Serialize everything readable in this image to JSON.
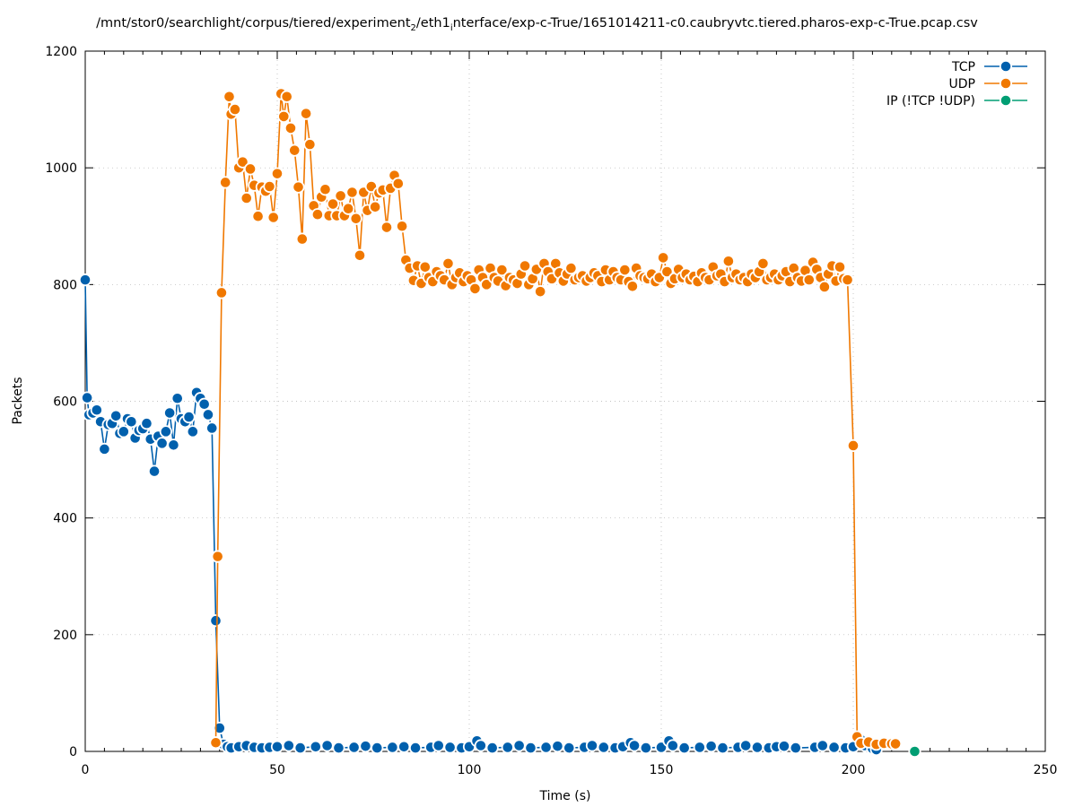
{
  "chart_data": {
    "type": "line",
    "title_parts": {
      "pre": "/mnt/stor0/searchlight/corpus/tiered/experiment",
      "sub1": "2",
      "mid": "/eth1",
      "sub2": "i",
      "post": "nterface/exp-c-True/1651014211-c0.caubryvtc.tiered.pharos-exp-c-True.pcap.csv"
    },
    "xlabel": "Time (s)",
    "ylabel": "Packets",
    "xlim": [
      0,
      250
    ],
    "ylim": [
      0,
      1200
    ],
    "x_ticks": [
      0,
      50,
      100,
      150,
      200,
      250
    ],
    "y_ticks": [
      0,
      200,
      400,
      600,
      800,
      1000,
      1200
    ],
    "grid": true,
    "legend_position": "top-right",
    "series": [
      {
        "name": "TCP",
        "color": "#0060ad",
        "points": [
          [
            0,
            808
          ],
          [
            0.5,
            606
          ],
          [
            1,
            577
          ],
          [
            2,
            580
          ],
          [
            3,
            585
          ],
          [
            4,
            565
          ],
          [
            5,
            518
          ],
          [
            6,
            560
          ],
          [
            7,
            562
          ],
          [
            8,
            575
          ],
          [
            9,
            545
          ],
          [
            10,
            548
          ],
          [
            11,
            570
          ],
          [
            12,
            565
          ],
          [
            13,
            537
          ],
          [
            14,
            550
          ],
          [
            15,
            553
          ],
          [
            16,
            562
          ],
          [
            17,
            535
          ],
          [
            18,
            480
          ],
          [
            19,
            540
          ],
          [
            20,
            528
          ],
          [
            21,
            548
          ],
          [
            22,
            580
          ],
          [
            23,
            525
          ],
          [
            24,
            605
          ],
          [
            25,
            570
          ],
          [
            26,
            565
          ],
          [
            27,
            573
          ],
          [
            28,
            548
          ],
          [
            29,
            615
          ],
          [
            30,
            605
          ],
          [
            31,
            595
          ],
          [
            32,
            577
          ],
          [
            33,
            554
          ],
          [
            34,
            224
          ],
          [
            35,
            40
          ],
          [
            36,
            12
          ],
          [
            37,
            8
          ],
          [
            38,
            6
          ],
          [
            40,
            8
          ],
          [
            42,
            10
          ],
          [
            44,
            7
          ],
          [
            46,
            6
          ],
          [
            48,
            7
          ],
          [
            50,
            8
          ],
          [
            53,
            10
          ],
          [
            56,
            6
          ],
          [
            60,
            8
          ],
          [
            63,
            10
          ],
          [
            66,
            6
          ],
          [
            70,
            7
          ],
          [
            73,
            9
          ],
          [
            76,
            6
          ],
          [
            80,
            7
          ],
          [
            83,
            8
          ],
          [
            86,
            6
          ],
          [
            90,
            7
          ],
          [
            92,
            10
          ],
          [
            95,
            7
          ],
          [
            98,
            6
          ],
          [
            100,
            8
          ],
          [
            102,
            18
          ],
          [
            103,
            10
          ],
          [
            106,
            6
          ],
          [
            110,
            7
          ],
          [
            113,
            10
          ],
          [
            116,
            6
          ],
          [
            120,
            7
          ],
          [
            123,
            9
          ],
          [
            126,
            6
          ],
          [
            130,
            7
          ],
          [
            132,
            10
          ],
          [
            135,
            7
          ],
          [
            138,
            6
          ],
          [
            140,
            8
          ],
          [
            142,
            15
          ],
          [
            143,
            10
          ],
          [
            146,
            6
          ],
          [
            150,
            7
          ],
          [
            152,
            18
          ],
          [
            153,
            10
          ],
          [
            156,
            6
          ],
          [
            160,
            7
          ],
          [
            163,
            9
          ],
          [
            166,
            6
          ],
          [
            170,
            7
          ],
          [
            172,
            10
          ],
          [
            175,
            7
          ],
          [
            178,
            6
          ],
          [
            180,
            8
          ],
          [
            182,
            9
          ],
          [
            185,
            6
          ],
          [
            190,
            7
          ],
          [
            192,
            10
          ],
          [
            195,
            7
          ],
          [
            198,
            6
          ],
          [
            200,
            8
          ],
          [
            202,
            20
          ],
          [
            203,
            10
          ],
          [
            205,
            5
          ],
          [
            206,
            3
          ]
        ]
      },
      {
        "name": "UDP",
        "color": "#f07800",
        "points": [
          [
            34,
            15
          ],
          [
            34.5,
            334
          ],
          [
            35.5,
            786
          ],
          [
            36.5,
            975
          ],
          [
            37.5,
            1122
          ],
          [
            38,
            1092
          ],
          [
            39,
            1100
          ],
          [
            40,
            1000
          ],
          [
            41,
            1010
          ],
          [
            42,
            948
          ],
          [
            43,
            998
          ],
          [
            44,
            970
          ],
          [
            45,
            917
          ],
          [
            46,
            967
          ],
          [
            47,
            960
          ],
          [
            48,
            968
          ],
          [
            49,
            915
          ],
          [
            50,
            990
          ],
          [
            51,
            1127
          ],
          [
            51.7,
            1088
          ],
          [
            52.5,
            1122
          ],
          [
            53.5,
            1068
          ],
          [
            54.5,
            1030
          ],
          [
            55.5,
            967
          ],
          [
            56.5,
            878
          ],
          [
            57.5,
            1093
          ],
          [
            58.5,
            1040
          ],
          [
            59.5,
            935
          ],
          [
            60.5,
            920
          ],
          [
            61.5,
            950
          ],
          [
            62.5,
            963
          ],
          [
            63.5,
            918
          ],
          [
            64.5,
            938
          ],
          [
            65.5,
            918
          ],
          [
            66.5,
            952
          ],
          [
            67.5,
            918
          ],
          [
            68.5,
            930
          ],
          [
            69.5,
            958
          ],
          [
            70.5,
            913
          ],
          [
            71.5,
            850
          ],
          [
            72.5,
            958
          ],
          [
            73.5,
            927
          ],
          [
            74.5,
            968
          ],
          [
            75.5,
            933
          ],
          [
            76.5,
            957
          ],
          [
            77.5,
            962
          ],
          [
            78.5,
            898
          ],
          [
            79.5,
            965
          ],
          [
            80.5,
            987
          ],
          [
            81.5,
            973
          ],
          [
            82.5,
            900
          ],
          [
            83.5,
            842
          ],
          [
            84.5,
            828
          ],
          [
            85.5,
            807
          ],
          [
            86.5,
            832
          ],
          [
            87.5,
            802
          ],
          [
            88.5,
            830
          ],
          [
            89.5,
            812
          ],
          [
            90.5,
            805
          ],
          [
            91.5,
            822
          ],
          [
            92.5,
            815
          ],
          [
            93.5,
            808
          ],
          [
            94.5,
            836
          ],
          [
            95.5,
            800
          ],
          [
            96.5,
            812
          ],
          [
            97.5,
            820
          ],
          [
            98.5,
            805
          ],
          [
            99.5,
            815
          ],
          [
            100.5,
            808
          ],
          [
            101.5,
            793
          ],
          [
            102.5,
            825
          ],
          [
            103.5,
            812
          ],
          [
            104.5,
            800
          ],
          [
            105.5,
            828
          ],
          [
            106.5,
            812
          ],
          [
            107.5,
            806
          ],
          [
            108.5,
            825
          ],
          [
            109.5,
            798
          ],
          [
            110.5,
            812
          ],
          [
            111.5,
            808
          ],
          [
            112.5,
            802
          ],
          [
            113.5,
            818
          ],
          [
            114.5,
            832
          ],
          [
            115.5,
            800
          ],
          [
            116.5,
            810
          ],
          [
            117.5,
            826
          ],
          [
            118.5,
            788
          ],
          [
            119.5,
            836
          ],
          [
            120.5,
            822
          ],
          [
            121.5,
            810
          ],
          [
            122.5,
            836
          ],
          [
            123.5,
            820
          ],
          [
            124.5,
            806
          ],
          [
            125.5,
            818
          ],
          [
            126.5,
            828
          ],
          [
            127.5,
            808
          ],
          [
            128.5,
            812
          ],
          [
            129.5,
            815
          ],
          [
            130.5,
            806
          ],
          [
            131.5,
            812
          ],
          [
            132.5,
            820
          ],
          [
            133.5,
            815
          ],
          [
            134.5,
            805
          ],
          [
            135.5,
            825
          ],
          [
            136.5,
            808
          ],
          [
            137.5,
            822
          ],
          [
            138.5,
            812
          ],
          [
            139.5,
            808
          ],
          [
            140.5,
            825
          ],
          [
            141.5,
            805
          ],
          [
            142.5,
            797
          ],
          [
            143.5,
            828
          ],
          [
            144.5,
            815
          ],
          [
            145.5,
            812
          ],
          [
            146.5,
            810
          ],
          [
            147.5,
            818
          ],
          [
            148.5,
            805
          ],
          [
            149.5,
            812
          ],
          [
            150.5,
            846
          ],
          [
            151.5,
            822
          ],
          [
            152.5,
            802
          ],
          [
            153.5,
            810
          ],
          [
            154.5,
            826
          ],
          [
            155.5,
            812
          ],
          [
            156.5,
            818
          ],
          [
            157.5,
            808
          ],
          [
            158.5,
            814
          ],
          [
            159.5,
            805
          ],
          [
            160.5,
            820
          ],
          [
            161.5,
            812
          ],
          [
            162.5,
            808
          ],
          [
            163.5,
            830
          ],
          [
            164.5,
            815
          ],
          [
            165.5,
            818
          ],
          [
            166.5,
            805
          ],
          [
            167.5,
            840
          ],
          [
            168.5,
            812
          ],
          [
            169.5,
            818
          ],
          [
            170.5,
            808
          ],
          [
            171.5,
            812
          ],
          [
            172.5,
            805
          ],
          [
            173.5,
            818
          ],
          [
            174.5,
            812
          ],
          [
            175.5,
            822
          ],
          [
            176.5,
            836
          ],
          [
            177.5,
            808
          ],
          [
            178.5,
            812
          ],
          [
            179.5,
            818
          ],
          [
            180.5,
            808
          ],
          [
            181.5,
            815
          ],
          [
            182.5,
            822
          ],
          [
            183.5,
            805
          ],
          [
            184.5,
            828
          ],
          [
            185.5,
            812
          ],
          [
            186.5,
            806
          ],
          [
            187.5,
            824
          ],
          [
            188.5,
            808
          ],
          [
            189.5,
            838
          ],
          [
            190.5,
            826
          ],
          [
            191.5,
            812
          ],
          [
            192.5,
            796
          ],
          [
            193.5,
            818
          ],
          [
            194.5,
            832
          ],
          [
            195.5,
            806
          ],
          [
            196.5,
            830
          ],
          [
            197.5,
            810
          ],
          [
            198.5,
            808
          ],
          [
            200,
            524
          ],
          [
            201,
            25
          ],
          [
            202,
            14
          ],
          [
            204,
            16
          ],
          [
            206,
            12
          ],
          [
            208,
            14
          ],
          [
            210,
            13
          ],
          [
            211,
            13
          ]
        ]
      },
      {
        "name": "IP (!TCP  !UDP)",
        "color": "#009e73",
        "points": [
          [
            216,
            0
          ]
        ]
      }
    ]
  }
}
